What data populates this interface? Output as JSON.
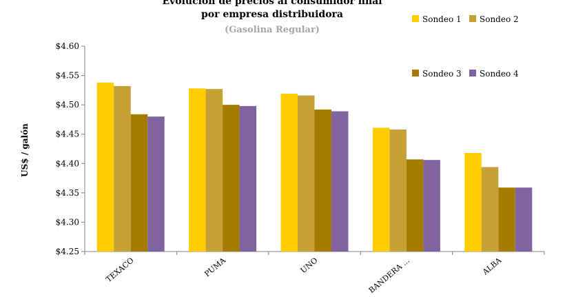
{
  "chart_data": {
    "type": "bar",
    "title_line1": "Evolución de precios al consumidor final",
    "title_line2": "por empresa distribuidora",
    "subtitle": "(Gasolina Regular)",
    "ylabel": "US$ / galón",
    "xlabel": "",
    "ylim": [
      4.25,
      4.6
    ],
    "yticks": [
      "$4.25",
      "$4.30",
      "$4.35",
      "$4.40",
      "$4.45",
      "$4.50",
      "$4.55",
      "$4.60"
    ],
    "ytick_values": [
      4.25,
      4.3,
      4.35,
      4.4,
      4.45,
      4.5,
      4.55,
      4.6
    ],
    "grid": false,
    "legend_position": "top-right",
    "categories": [
      "TEXACO",
      "PUMA",
      "UNO",
      "BANDERA ...",
      "ALBA"
    ],
    "series": [
      {
        "name": "Sondeo 1",
        "color": "#ffcc00",
        "values": [
          4.538,
          4.528,
          4.519,
          4.461,
          4.418
        ]
      },
      {
        "name": "Sondeo 2",
        "color": "#c4a035",
        "values": [
          4.532,
          4.527,
          4.516,
          4.458,
          4.394
        ]
      },
      {
        "name": "Sondeo 3",
        "color": "#a67c00",
        "values": [
          4.484,
          4.5,
          4.492,
          4.407,
          4.359
        ]
      },
      {
        "name": "Sondeo 4",
        "color": "#8064a2",
        "values": [
          4.48,
          4.498,
          4.489,
          4.406,
          4.359
        ]
      }
    ]
  }
}
